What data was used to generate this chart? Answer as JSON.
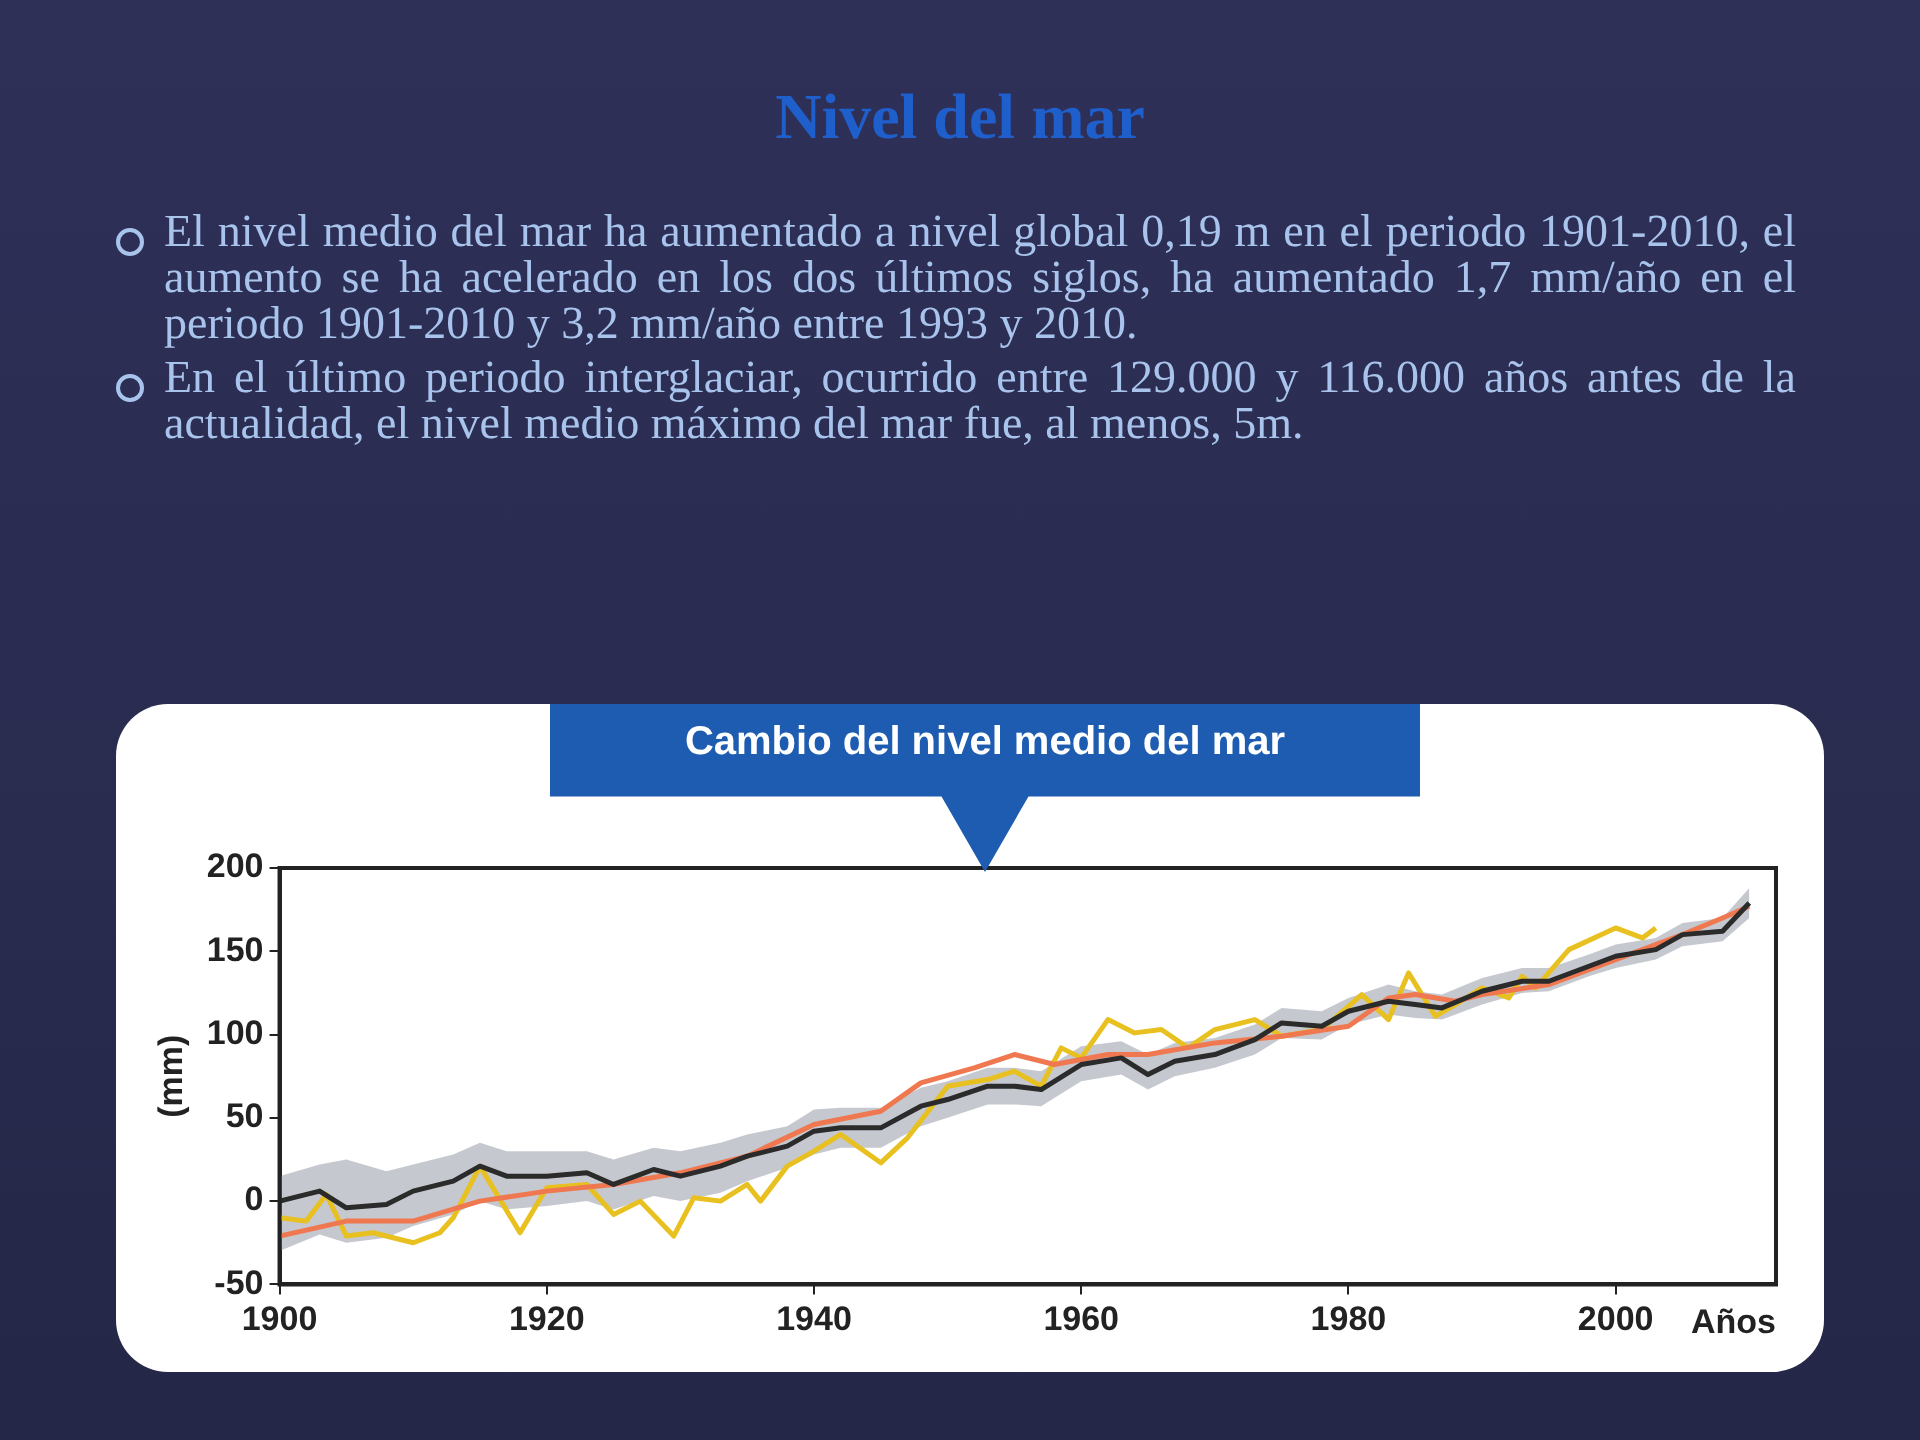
{
  "chart_data": {
    "type": "line",
    "title": "Nivel del mar",
    "subtitle": "Cambio del nivel medio del mar",
    "xlabel": "Años",
    "ylabel": "(mm)",
    "annotations": [
      "El nivel medio del mar ha aumentado a nivel global 0,19 m en el periodo 1901-2010, el aumento se ha acelerado en los dos últimos siglos, ha aumentado 1,7 mm/año en el periodo 1901-2010 y 3,2 mm/año entre 1993 y 2010.",
      "En el último periodo interglaciar, ocurrido entre 129.000 y 116.000 años antes de la actualidad, el nivel medio máximo del mar fue, al menos, 5m."
    ],
    "xlim": [
      1900,
      2012
    ],
    "ylim": [
      -50,
      200
    ],
    "xticks": [
      1900,
      1920,
      1940,
      1960,
      1980,
      2000
    ],
    "yticks": [
      -50,
      0,
      50,
      100,
      150,
      200
    ],
    "series": [
      {
        "color": "#2b2b2b",
        "x": [
          1900,
          1903,
          1905,
          1908,
          1910,
          1913,
          1915,
          1917,
          1920,
          1923,
          1925,
          1928,
          1930,
          1933,
          1935,
          1938,
          1940,
          1942,
          1945,
          1948,
          1950,
          1953,
          1955,
          1957,
          1960,
          1963,
          1965,
          1967,
          1970,
          1973,
          1975,
          1978,
          1980,
          1983,
          1985,
          1987,
          1990,
          1993,
          1995,
          1998,
          2000,
          2003,
          2005,
          2008,
          2010
        ],
        "values": [
          0,
          6,
          -4,
          -2,
          6,
          12,
          21,
          15,
          15,
          17,
          10,
          19,
          15,
          21,
          27,
          33,
          42,
          44,
          44,
          57,
          61,
          69,
          69,
          67,
          82,
          86,
          76,
          84,
          88,
          97,
          107,
          105,
          114,
          120,
          118,
          116,
          126,
          132,
          132,
          141,
          147,
          151,
          160,
          162,
          179
        ],
        "lower": [
          -30,
          -20,
          -25,
          -22,
          -15,
          -8,
          0,
          -5,
          -3,
          0,
          -5,
          3,
          0,
          5,
          12,
          20,
          28,
          32,
          32,
          45,
          50,
          58,
          58,
          57,
          72,
          76,
          67,
          75,
          80,
          88,
          98,
          97,
          106,
          112,
          110,
          109,
          118,
          125,
          126,
          135,
          140,
          145,
          153,
          156,
          170
        ],
        "upper": [
          15,
          22,
          25,
          18,
          22,
          28,
          35,
          30,
          30,
          30,
          25,
          32,
          30,
          35,
          40,
          45,
          55,
          56,
          56,
          68,
          72,
          80,
          80,
          78,
          93,
          96,
          88,
          95,
          98,
          106,
          116,
          114,
          122,
          130,
          126,
          124,
          134,
          140,
          140,
          148,
          154,
          158,
          167,
          170,
          188
        ]
      },
      {
        "color": "#f07850",
        "x": [
          1900,
          1905,
          1910,
          1915,
          1920,
          1925,
          1930,
          1935,
          1940,
          1945,
          1948,
          1952,
          1955,
          1958,
          1962,
          1965,
          1970,
          1975,
          1980,
          1983,
          1985,
          1988,
          1990,
          1995,
          2000,
          2005,
          2008,
          2010
        ],
        "values": [
          -21,
          -12,
          -12,
          0,
          6,
          10,
          17,
          27,
          46,
          54,
          71,
          80,
          88,
          82,
          88,
          88,
          95,
          99,
          105,
          122,
          124,
          120,
          124,
          130,
          145,
          160,
          170,
          177
        ]
      },
      {
        "color": "#e8c020",
        "x": [
          1900,
          1902,
          1903.5,
          1905,
          1907,
          1910,
          1912,
          1913,
          1915,
          1918,
          1920,
          1923,
          1925,
          1927,
          1929.5,
          1931,
          1933,
          1935,
          1936,
          1938,
          1940,
          1942,
          1945,
          1947,
          1950,
          1953,
          1955,
          1957,
          1958.5,
          1960,
          1962,
          1964,
          1966,
          1968,
          1970,
          1973,
          1975,
          1978,
          1981,
          1983,
          1984.5,
          1986.5,
          1988,
          1990,
          1992,
          1993,
          1994,
          1996.5,
          2000,
          2002,
          2003
        ],
        "values": [
          -10,
          -12,
          4,
          -21,
          -19,
          -25,
          -19,
          -10,
          21,
          -19,
          8,
          10,
          -8,
          0,
          -21,
          2,
          0,
          10,
          0,
          21,
          30,
          40,
          23,
          38,
          69,
          73,
          78,
          69,
          92,
          86,
          109,
          101,
          103,
          92,
          103,
          109,
          99,
          103,
          124,
          109,
          137,
          111,
          118,
          128,
          122,
          135,
          128,
          151,
          164,
          158,
          164
        ]
      }
    ]
  }
}
